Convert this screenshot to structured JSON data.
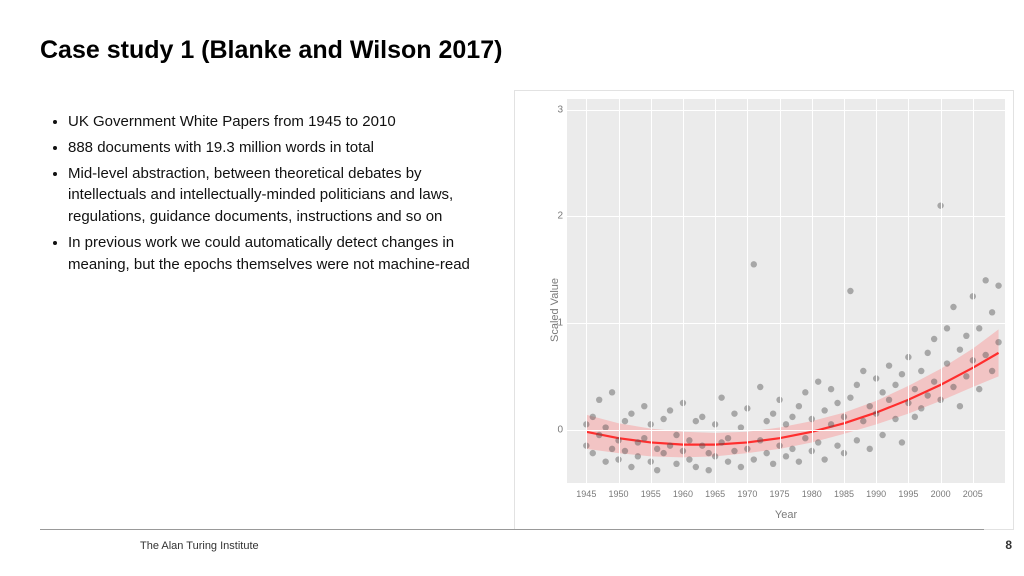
{
  "title": "Case study 1 (Blanke and Wilson 2017)",
  "bullets": [
    "UK Government White Papers from 1945 to 2010",
    "888 documents with 19.3 million words in total",
    "Mid-level abstraction, between theoretical debates by intellectuals and intellectually-minded politicians and laws, regulations, guidance documents, instructions and so on",
    "In previous work we could automatically detect changes in meaning, but the epochs themselves were not machine-read"
  ],
  "footer": "The Alan Turing Institute",
  "page_number": "8",
  "chart": {
    "type": "scatter-with-smooth",
    "xlabel": "Year",
    "ylabel": "Scaled Value",
    "background_color": "#ebebeb",
    "grid_color": "#ffffff",
    "point_color": "#555555",
    "point_opacity": 0.45,
    "point_radius": 3.2,
    "line_color": "#ff2e2e",
    "line_width": 2.2,
    "ribbon_color": "#ff7a7a",
    "ribbon_opacity": 0.35,
    "xlim": [
      1942,
      2010
    ],
    "ylim": [
      -0.5,
      3.1
    ],
    "xticks": [
      1945,
      1950,
      1955,
      1960,
      1965,
      1970,
      1975,
      1980,
      1985,
      1990,
      1995,
      2000,
      2005
    ],
    "yticks": [
      0,
      1,
      2,
      3
    ],
    "curve": [
      {
        "x": 1945,
        "y": -0.02,
        "lo": -0.18,
        "hi": 0.14
      },
      {
        "x": 1950,
        "y": -0.08,
        "lo": -0.22,
        "hi": 0.06
      },
      {
        "x": 1955,
        "y": -0.12,
        "lo": -0.25,
        "hi": 0.01
      },
      {
        "x": 1960,
        "y": -0.14,
        "lo": -0.26,
        "hi": -0.02
      },
      {
        "x": 1965,
        "y": -0.14,
        "lo": -0.25,
        "hi": -0.03
      },
      {
        "x": 1970,
        "y": -0.12,
        "lo": -0.22,
        "hi": -0.02
      },
      {
        "x": 1975,
        "y": -0.08,
        "lo": -0.18,
        "hi": 0.02
      },
      {
        "x": 1980,
        "y": -0.02,
        "lo": -0.12,
        "hi": 0.08
      },
      {
        "x": 1985,
        "y": 0.06,
        "lo": -0.04,
        "hi": 0.16
      },
      {
        "x": 1990,
        "y": 0.16,
        "lo": 0.05,
        "hi": 0.27
      },
      {
        "x": 1995,
        "y": 0.28,
        "lo": 0.15,
        "hi": 0.41
      },
      {
        "x": 2000,
        "y": 0.42,
        "lo": 0.27,
        "hi": 0.57
      },
      {
        "x": 2005,
        "y": 0.58,
        "lo": 0.4,
        "hi": 0.76
      },
      {
        "x": 2009,
        "y": 0.72,
        "lo": 0.5,
        "hi": 0.94
      }
    ],
    "points": [
      {
        "x": 1945,
        "y": 0.05
      },
      {
        "x": 1945,
        "y": -0.15
      },
      {
        "x": 1946,
        "y": -0.22
      },
      {
        "x": 1946,
        "y": 0.12
      },
      {
        "x": 1947,
        "y": -0.05
      },
      {
        "x": 1947,
        "y": 0.28
      },
      {
        "x": 1948,
        "y": -0.3
      },
      {
        "x": 1948,
        "y": 0.02
      },
      {
        "x": 1949,
        "y": -0.18
      },
      {
        "x": 1949,
        "y": 0.35
      },
      {
        "x": 1950,
        "y": -0.1
      },
      {
        "x": 1950,
        "y": -0.28
      },
      {
        "x": 1951,
        "y": 0.08
      },
      {
        "x": 1951,
        "y": -0.2
      },
      {
        "x": 1952,
        "y": -0.35
      },
      {
        "x": 1952,
        "y": 0.15
      },
      {
        "x": 1953,
        "y": -0.12
      },
      {
        "x": 1953,
        "y": -0.25
      },
      {
        "x": 1954,
        "y": 0.22
      },
      {
        "x": 1954,
        "y": -0.08
      },
      {
        "x": 1955,
        "y": -0.3
      },
      {
        "x": 1955,
        "y": 0.05
      },
      {
        "x": 1956,
        "y": -0.18
      },
      {
        "x": 1956,
        "y": -0.38
      },
      {
        "x": 1957,
        "y": 0.1
      },
      {
        "x": 1957,
        "y": -0.22
      },
      {
        "x": 1958,
        "y": -0.15
      },
      {
        "x": 1958,
        "y": 0.18
      },
      {
        "x": 1959,
        "y": -0.32
      },
      {
        "x": 1959,
        "y": -0.05
      },
      {
        "x": 1960,
        "y": -0.2
      },
      {
        "x": 1960,
        "y": 0.25
      },
      {
        "x": 1961,
        "y": -0.28
      },
      {
        "x": 1961,
        "y": -0.1
      },
      {
        "x": 1962,
        "y": 0.08
      },
      {
        "x": 1962,
        "y": -0.35
      },
      {
        "x": 1963,
        "y": -0.15
      },
      {
        "x": 1963,
        "y": 0.12
      },
      {
        "x": 1964,
        "y": -0.22
      },
      {
        "x": 1964,
        "y": -0.38
      },
      {
        "x": 1965,
        "y": 0.05
      },
      {
        "x": 1965,
        "y": -0.25
      },
      {
        "x": 1966,
        "y": -0.12
      },
      {
        "x": 1966,
        "y": 0.3
      },
      {
        "x": 1967,
        "y": -0.3
      },
      {
        "x": 1967,
        "y": -0.08
      },
      {
        "x": 1968,
        "y": 0.15
      },
      {
        "x": 1968,
        "y": -0.2
      },
      {
        "x": 1969,
        "y": -0.35
      },
      {
        "x": 1969,
        "y": 0.02
      },
      {
        "x": 1970,
        "y": -0.18
      },
      {
        "x": 1970,
        "y": 0.2
      },
      {
        "x": 1971,
        "y": -0.28
      },
      {
        "x": 1971,
        "y": 1.55
      },
      {
        "x": 1972,
        "y": -0.1
      },
      {
        "x": 1972,
        "y": 0.4
      },
      {
        "x": 1973,
        "y": -0.22
      },
      {
        "x": 1973,
        "y": 0.08
      },
      {
        "x": 1974,
        "y": -0.32
      },
      {
        "x": 1974,
        "y": 0.15
      },
      {
        "x": 1975,
        "y": -0.15
      },
      {
        "x": 1975,
        "y": 0.28
      },
      {
        "x": 1976,
        "y": -0.25
      },
      {
        "x": 1976,
        "y": 0.05
      },
      {
        "x": 1977,
        "y": 0.12
      },
      {
        "x": 1977,
        "y": -0.18
      },
      {
        "x": 1978,
        "y": -0.3
      },
      {
        "x": 1978,
        "y": 0.22
      },
      {
        "x": 1979,
        "y": -0.08
      },
      {
        "x": 1979,
        "y": 0.35
      },
      {
        "x": 1980,
        "y": -0.2
      },
      {
        "x": 1980,
        "y": 0.1
      },
      {
        "x": 1981,
        "y": 0.45
      },
      {
        "x": 1981,
        "y": -0.12
      },
      {
        "x": 1982,
        "y": 0.18
      },
      {
        "x": 1982,
        "y": -0.28
      },
      {
        "x": 1983,
        "y": 0.05
      },
      {
        "x": 1983,
        "y": 0.38
      },
      {
        "x": 1984,
        "y": -0.15
      },
      {
        "x": 1984,
        "y": 0.25
      },
      {
        "x": 1985,
        "y": 0.12
      },
      {
        "x": 1985,
        "y": -0.22
      },
      {
        "x": 1986,
        "y": 0.3
      },
      {
        "x": 1986,
        "y": 1.3
      },
      {
        "x": 1987,
        "y": -0.1
      },
      {
        "x": 1987,
        "y": 0.42
      },
      {
        "x": 1988,
        "y": 0.08
      },
      {
        "x": 1988,
        "y": 0.55
      },
      {
        "x": 1989,
        "y": -0.18
      },
      {
        "x": 1989,
        "y": 0.22
      },
      {
        "x": 1990,
        "y": 0.15
      },
      {
        "x": 1990,
        "y": 0.48
      },
      {
        "x": 1991,
        "y": -0.05
      },
      {
        "x": 1991,
        "y": 0.35
      },
      {
        "x": 1992,
        "y": 0.28
      },
      {
        "x": 1992,
        "y": 0.6
      },
      {
        "x": 1993,
        "y": 0.1
      },
      {
        "x": 1993,
        "y": 0.42
      },
      {
        "x": 1994,
        "y": -0.12
      },
      {
        "x": 1994,
        "y": 0.52
      },
      {
        "x": 1995,
        "y": 0.25
      },
      {
        "x": 1995,
        "y": 0.68
      },
      {
        "x": 1996,
        "y": 0.38
      },
      {
        "x": 1996,
        "y": 0.12
      },
      {
        "x": 1997,
        "y": 0.55
      },
      {
        "x": 1997,
        "y": 0.2
      },
      {
        "x": 1998,
        "y": 0.72
      },
      {
        "x": 1998,
        "y": 0.32
      },
      {
        "x": 1999,
        "y": 0.45
      },
      {
        "x": 1999,
        "y": 0.85
      },
      {
        "x": 2000,
        "y": 0.28
      },
      {
        "x": 2000,
        "y": 2.1
      },
      {
        "x": 2001,
        "y": 0.62
      },
      {
        "x": 2001,
        "y": 0.95
      },
      {
        "x": 2002,
        "y": 0.4
      },
      {
        "x": 2002,
        "y": 1.15
      },
      {
        "x": 2003,
        "y": 0.75
      },
      {
        "x": 2003,
        "y": 0.22
      },
      {
        "x": 2004,
        "y": 0.88
      },
      {
        "x": 2004,
        "y": 0.5
      },
      {
        "x": 2005,
        "y": 0.65
      },
      {
        "x": 2005,
        "y": 1.25
      },
      {
        "x": 2006,
        "y": 0.95
      },
      {
        "x": 2006,
        "y": 0.38
      },
      {
        "x": 2007,
        "y": 1.4
      },
      {
        "x": 2007,
        "y": 0.7
      },
      {
        "x": 2008,
        "y": 0.55
      },
      {
        "x": 2008,
        "y": 1.1
      },
      {
        "x": 2009,
        "y": 0.82
      },
      {
        "x": 2009,
        "y": 1.35
      }
    ]
  }
}
